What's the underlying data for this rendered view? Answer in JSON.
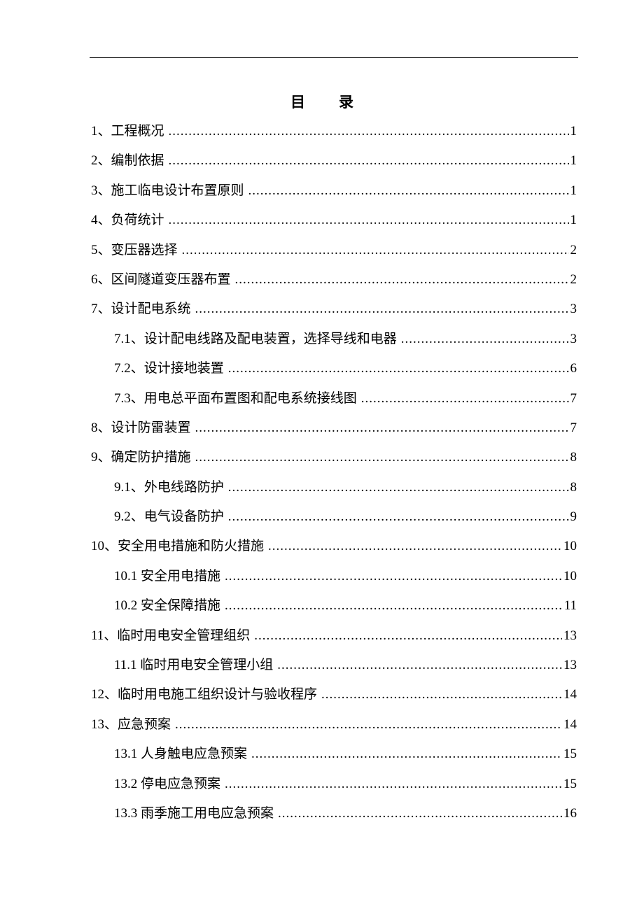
{
  "title": "目录",
  "entries": [
    {
      "label": "1、工程概况",
      "page": "1",
      "level": 1
    },
    {
      "label": "2、编制依据",
      "page": "1",
      "level": 1
    },
    {
      "label": "3、施工临电设计布置原则",
      "page": "1",
      "level": 1
    },
    {
      "label": "4、负荷统计",
      "page": "1",
      "level": 1
    },
    {
      "label": "5、变压器选择",
      "page": "2",
      "level": 1
    },
    {
      "label": "6、区间隧道变压器布置",
      "page": "2",
      "level": 1
    },
    {
      "label": "7、设计配电系统",
      "page": "3",
      "level": 1
    },
    {
      "label": "7.1、设计配电线路及配电装置，选择导线和电器",
      "page": "3",
      "level": 2
    },
    {
      "label": "7.2、设计接地装置",
      "page": "6",
      "level": 2
    },
    {
      "label": "7.3、用电总平面布置图和配电系统接线图",
      "page": "7",
      "level": 2
    },
    {
      "label": "8、设计防雷装置",
      "page": "7",
      "level": 1
    },
    {
      "label": "9、确定防护措施",
      "page": "8",
      "level": 1
    },
    {
      "label": "9.1、外电线路防护",
      "page": "8",
      "level": 2
    },
    {
      "label": "9.2、电气设备防护",
      "page": "9",
      "level": 2
    },
    {
      "label": "10、安全用电措施和防火措施",
      "page": "10",
      "level": 1
    },
    {
      "label": "10.1 安全用电措施",
      "page": "10",
      "level": 2
    },
    {
      "label": "10.2 安全保障措施",
      "page": "11",
      "level": 2
    },
    {
      "label": "11、临时用电安全管理组织",
      "page": "13",
      "level": 1
    },
    {
      "label": "11.1 临时用电安全管理小组",
      "page": "13",
      "level": 2
    },
    {
      "label": "12、临时用电施工组织设计与验收程序",
      "page": "14",
      "level": 1
    },
    {
      "label": "13、应急预案",
      "page": "14",
      "level": 1
    },
    {
      "label": "13.1 人身触电应急预案",
      "page": "15",
      "level": 2
    },
    {
      "label": "13.2 停电应急预案",
      "page": "15",
      "level": 2
    },
    {
      "label": "13.3 雨季施工用电应急预案",
      "page": "16",
      "level": 2
    }
  ]
}
